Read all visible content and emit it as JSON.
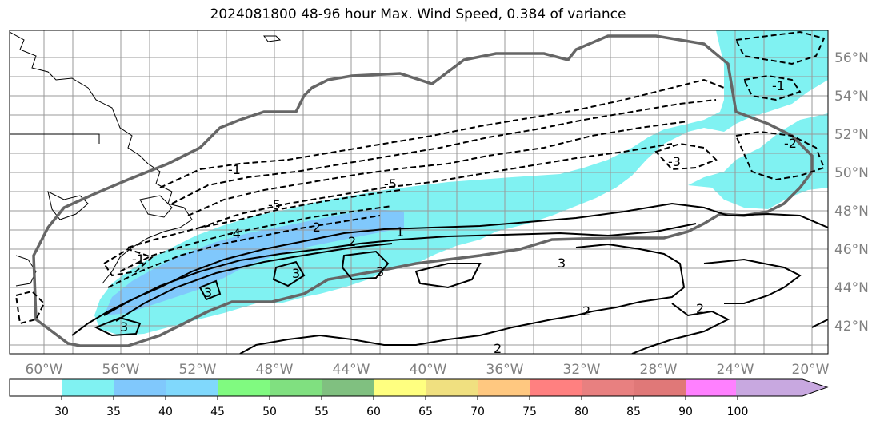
{
  "title": "2024081800 48-96 hour Max. Wind Speed, 0.384 of variance",
  "map": {
    "lon_labels": [
      "60°W",
      "56°W",
      "52°W",
      "48°W",
      "44°W",
      "40°W",
      "36°W",
      "32°W",
      "28°W",
      "24°W",
      "20°W"
    ],
    "lat_labels": [
      "56°N",
      "54°N",
      "52°N",
      "50°N",
      "48°N",
      "46°N",
      "44°N",
      "42°N"
    ],
    "contour_labels": [
      "1",
      "2",
      "3",
      "-1",
      "-2",
      "-3",
      "-4",
      "-5"
    ],
    "colors": {
      "shade_30": "#80f2f2",
      "shade_35": "#80c8fc",
      "coast": "#000000",
      "domain_outline": "#666666",
      "grid": "#999999",
      "label": "#808080"
    }
  },
  "colorbar": {
    "ticks": [
      "30",
      "35",
      "40",
      "45",
      "50",
      "55",
      "60",
      "65",
      "70",
      "75",
      "80",
      "85",
      "90",
      "100"
    ],
    "colors": [
      "#ffffff",
      "#80f2f2",
      "#80c8fc",
      "#80d8fc",
      "#80fa80",
      "#80e080",
      "#80c080",
      "#ffff80",
      "#f0e080",
      "#ffc880",
      "#ff8080",
      "#e88080",
      "#e07878",
      "#ff80ff",
      "#c8a8e0"
    ]
  }
}
